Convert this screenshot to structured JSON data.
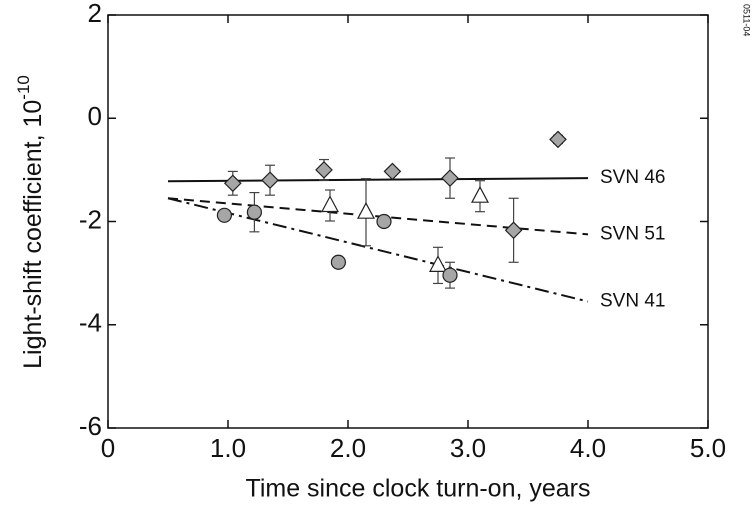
{
  "chart_data": {
    "type": "scatter",
    "xlabel": "Time since clock turn-on, years",
    "ylabel": "Light-shift coefficient, 10",
    "ylabel_exponent": "-10",
    "figure_id": "0511-04",
    "xlim": [
      0,
      5
    ],
    "ylim": [
      -6,
      2
    ],
    "xticks": [
      0,
      {
        "value": 1,
        "label": "1.0"
      },
      {
        "value": 2,
        "label": "2.0"
      },
      {
        "value": 3,
        "label": "3.0"
      },
      {
        "value": 4,
        "label": "4.0"
      },
      {
        "value": 5,
        "label": "5.0"
      }
    ],
    "yticks": [
      -6,
      -4,
      -2,
      0,
      2
    ],
    "series": [
      {
        "marker": "diamond",
        "color": "#a6a6a6",
        "x": [
          1.04,
          1.35,
          1.8,
          2.37,
          2.85,
          3.38,
          3.75
        ],
        "values": [
          -1.26,
          -1.2,
          -1.0,
          -1.03,
          -1.16,
          -2.17,
          -0.41
        ],
        "errors": [
          0.23,
          0.29,
          0.2,
          0.05,
          0.39,
          0.62,
          0.08
        ]
      },
      {
        "marker": "triangle",
        "color": "#ffffff",
        "x": [
          1.85,
          2.15,
          2.75,
          3.1
        ],
        "values": [
          -1.69,
          -1.82,
          -2.85,
          -1.51
        ],
        "errors": [
          0.3,
          0.65,
          0.35,
          0.3
        ]
      },
      {
        "marker": "circle",
        "color": "#a6a6a6",
        "x": [
          0.97,
          1.22,
          1.92,
          2.3,
          2.85
        ],
        "values": [
          -1.88,
          -1.82,
          -2.79,
          -2.0,
          -3.04
        ],
        "errors": [
          0.05,
          0.38,
          null,
          0.1,
          0.25
        ]
      }
    ],
    "fits": [
      {
        "label": "SVN 46",
        "dash": "solid",
        "x": [
          0.5,
          4.0
        ],
        "values": [
          -1.22,
          -1.16
        ]
      },
      {
        "label": "SVN 51",
        "dash": "dashed",
        "x": [
          0.5,
          4.0
        ],
        "values": [
          -1.55,
          -2.25
        ]
      },
      {
        "label": "SVN 41",
        "dash": "dashdot",
        "x": [
          0.5,
          4.0
        ],
        "values": [
          -1.55,
          -3.55
        ]
      }
    ]
  }
}
